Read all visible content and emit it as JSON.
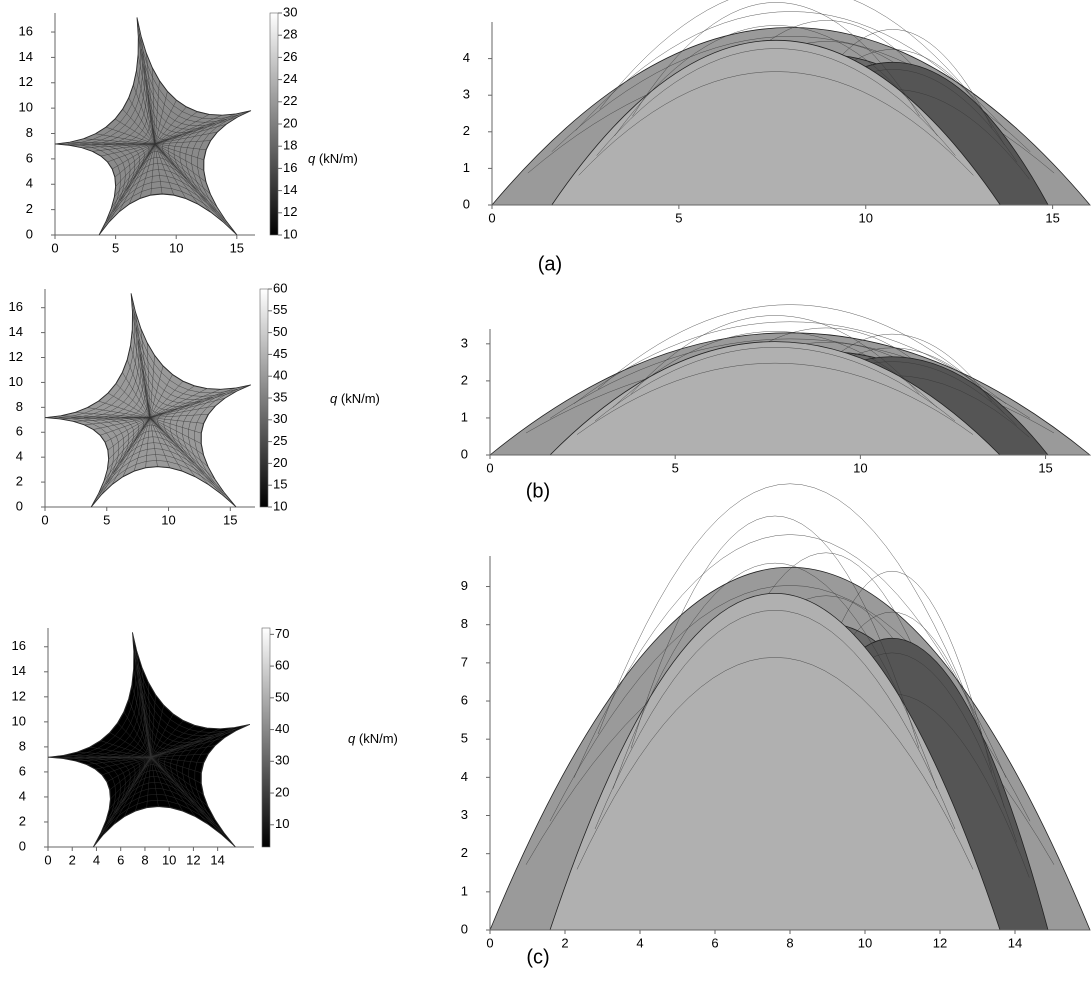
{
  "chart_data": [
    {
      "type": "plan",
      "xlim": [
        0,
        16.5
      ],
      "ylim": [
        0,
        17.5
      ],
      "xticks": [
        0,
        5,
        10,
        15
      ],
      "yticks": [
        0,
        2,
        4,
        6,
        8,
        10,
        12,
        14,
        16
      ],
      "colorbar": {
        "symbol": "q",
        "unit": "(kN/m)",
        "lim": [
          10,
          30
        ],
        "ticks": [
          10,
          12,
          14,
          16,
          18,
          20,
          22,
          24,
          26,
          28,
          30
        ],
        "colors": [
          "#000000",
          "#ffffff"
        ]
      }
    },
    {
      "type": "elevation",
      "caption": "(a)",
      "xlim": [
        0,
        16
      ],
      "ylim": [
        0,
        5
      ],
      "xticks": [
        0,
        5,
        10,
        15
      ],
      "yticks": [
        0,
        1,
        2,
        3,
        4
      ]
    },
    {
      "type": "plan",
      "xlim": [
        0,
        17
      ],
      "ylim": [
        0,
        17.5
      ],
      "xticks": [
        0,
        5,
        10,
        15
      ],
      "yticks": [
        0,
        2,
        4,
        6,
        8,
        10,
        12,
        14,
        16
      ],
      "colorbar": {
        "symbol": "q",
        "unit": "(kN/m)",
        "lim": [
          10,
          60
        ],
        "ticks": [
          10,
          15,
          20,
          25,
          30,
          35,
          40,
          45,
          50,
          55,
          60
        ],
        "colors": [
          "#000000",
          "#ffffff"
        ]
      }
    },
    {
      "type": "elevation",
      "caption": "(b)",
      "xlim": [
        0,
        16.2
      ],
      "ylim": [
        0,
        3.4
      ],
      "xticks": [
        0,
        5,
        10,
        15
      ],
      "yticks": [
        0,
        1,
        2,
        3
      ]
    },
    {
      "type": "plan",
      "xlim": [
        0,
        17
      ],
      "ylim": [
        0,
        17.5
      ],
      "xticks": [
        0,
        2,
        4,
        6,
        8,
        10,
        12,
        14
      ],
      "yticks": [
        0,
        2,
        4,
        6,
        8,
        10,
        12,
        14,
        16
      ],
      "colorbar": {
        "symbol": "q",
        "unit": "(kN/m)",
        "lim": [
          3,
          72
        ],
        "ticks": [
          10,
          20,
          30,
          40,
          50,
          60,
          70
        ],
        "colors": [
          "#000000",
          "#ffffff"
        ]
      }
    },
    {
      "type": "elevation",
      "caption": "(c)",
      "xlim": [
        0,
        16
      ],
      "ylim": [
        0,
        9.8
      ],
      "xticks": [
        0,
        2,
        4,
        6,
        8,
        10,
        12,
        14
      ],
      "yticks": [
        0,
        1,
        2,
        3,
        4,
        5,
        6,
        7,
        8,
        9
      ]
    }
  ]
}
